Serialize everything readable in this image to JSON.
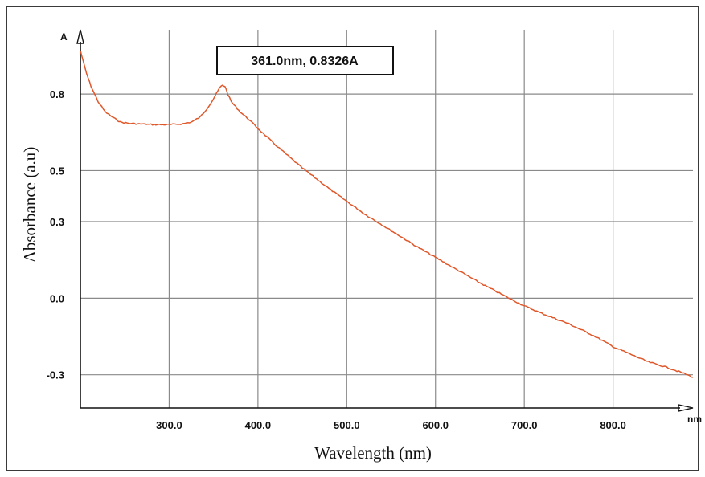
{
  "chart_data": {
    "type": "line",
    "title": "",
    "xlabel": "Wavelength (nm)",
    "ylabel": "Absorbance (a.u)",
    "x_unit": "nm",
    "y_unit": "A",
    "xlim": [
      200,
      890
    ],
    "ylim": [
      -0.43,
      1.03
    ],
    "grid": true,
    "x_ticks": [
      300,
      400,
      500,
      600,
      700,
      800
    ],
    "x_tick_labels": [
      "300.0",
      "400.0",
      "500.0",
      "600.0",
      "700.0",
      "800.0"
    ],
    "y_ticks": [
      -0.3,
      0.0,
      0.3,
      0.5,
      0.8
    ],
    "y_tick_labels": [
      "-0.3",
      "0.0",
      "0.3",
      "0.5",
      "0.8"
    ],
    "line_color": "#e0572a",
    "series": [
      {
        "x": [
          200,
          203,
          207,
          212,
          220,
          228,
          236,
          245,
          255,
          270,
          285,
          300,
          315,
          325,
          335,
          342,
          348,
          353,
          357,
          360,
          361,
          363,
          366,
          370,
          375,
          380,
          390,
          400,
          420,
          450,
          480,
          500,
          520,
          550,
          580,
          600,
          620,
          650,
          680,
          700,
          720,
          750,
          780,
          800,
          820,
          840,
          860,
          880,
          890
        ],
        "y": [
          0.97,
          0.93,
          0.88,
          0.83,
          0.77,
          0.73,
          0.71,
          0.69,
          0.685,
          0.682,
          0.68,
          0.68,
          0.683,
          0.69,
          0.71,
          0.74,
          0.77,
          0.8,
          0.825,
          0.834,
          0.8326,
          0.83,
          0.8,
          0.77,
          0.75,
          0.73,
          0.7,
          0.665,
          0.6,
          0.51,
          0.43,
          0.38,
          0.33,
          0.265,
          0.2,
          0.16,
          0.12,
          0.06,
          0.005,
          -0.03,
          -0.06,
          -0.1,
          -0.15,
          -0.19,
          -0.22,
          -0.25,
          -0.27,
          -0.295,
          -0.31
        ]
      }
    ],
    "annotation": {
      "text": "361.0nm, 0.8326A",
      "x": 361.0,
      "y": 0.8326
    }
  }
}
